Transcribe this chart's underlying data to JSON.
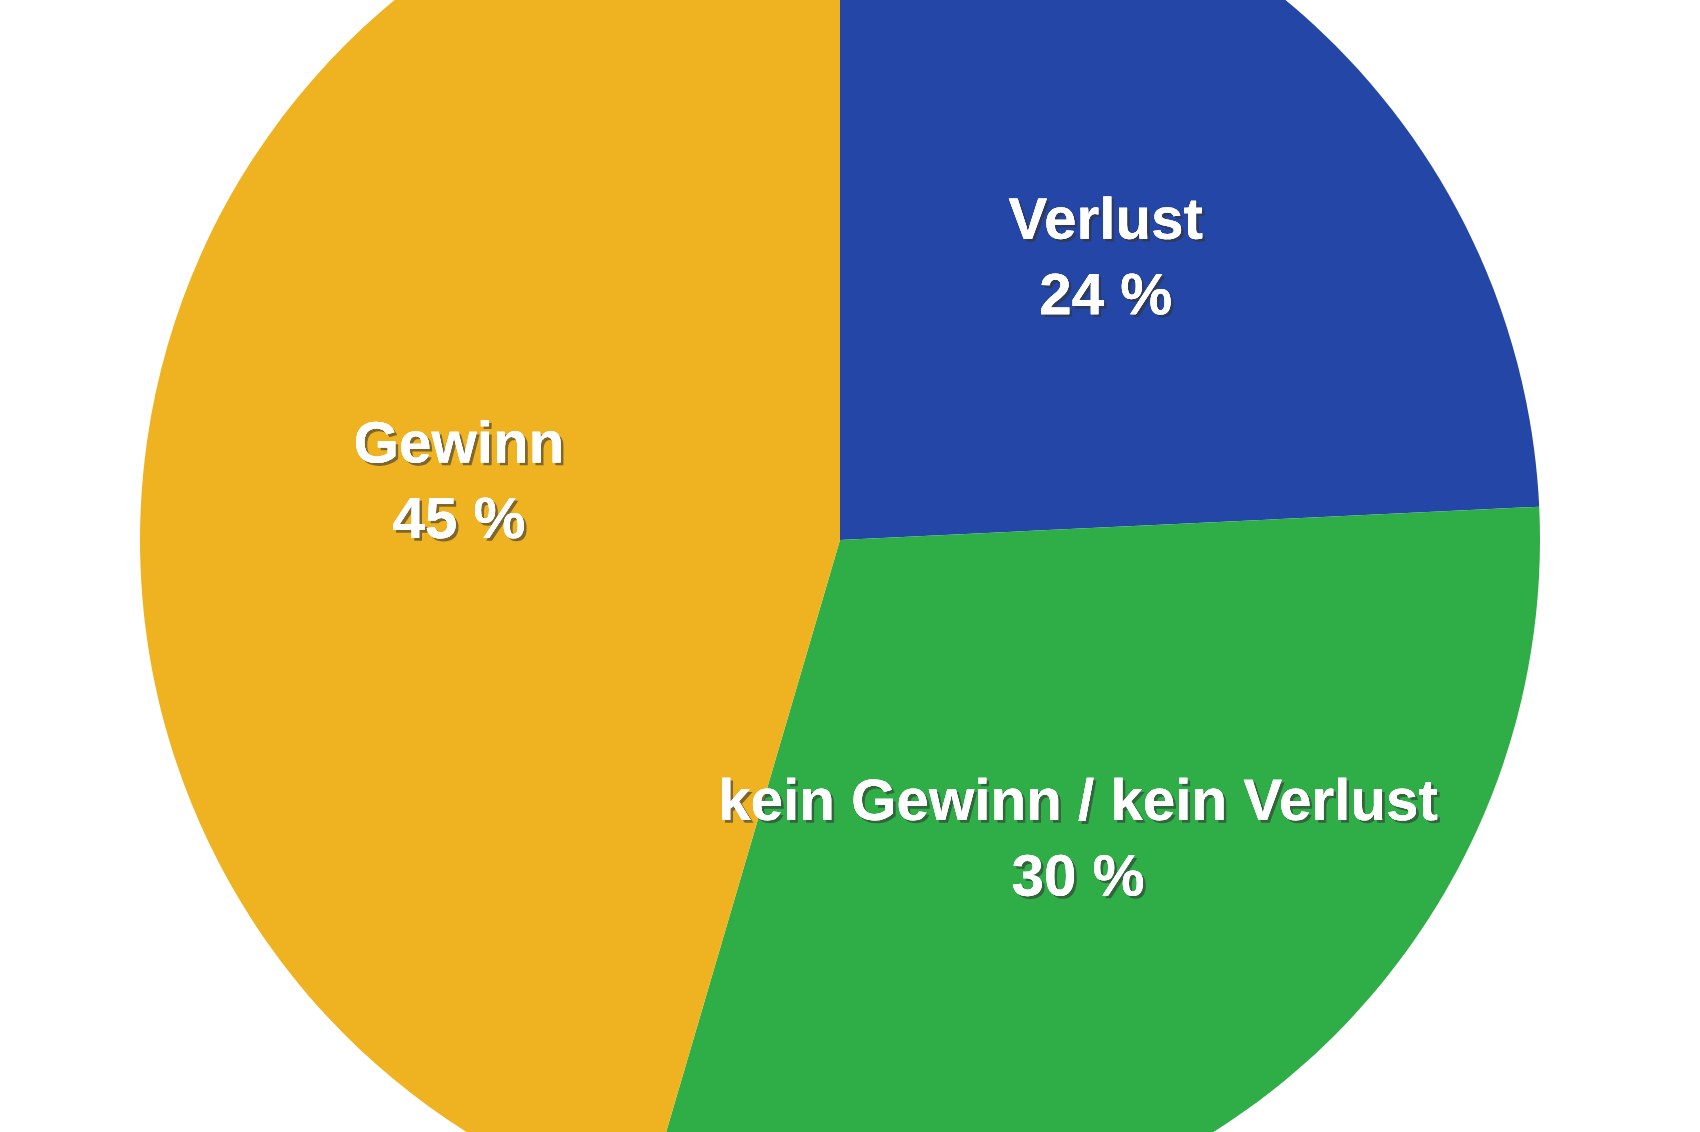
{
  "chart_data": {
    "type": "pie",
    "categories": [
      "Verlust",
      "kein Gewinn / kein Verlust",
      "Gewinn"
    ],
    "values": [
      24,
      30,
      45
    ],
    "value_labels": [
      "24 %",
      "30 %",
      "45 %"
    ],
    "colors": [
      "#2446a6",
      "#2fae48",
      "#efb322"
    ]
  }
}
